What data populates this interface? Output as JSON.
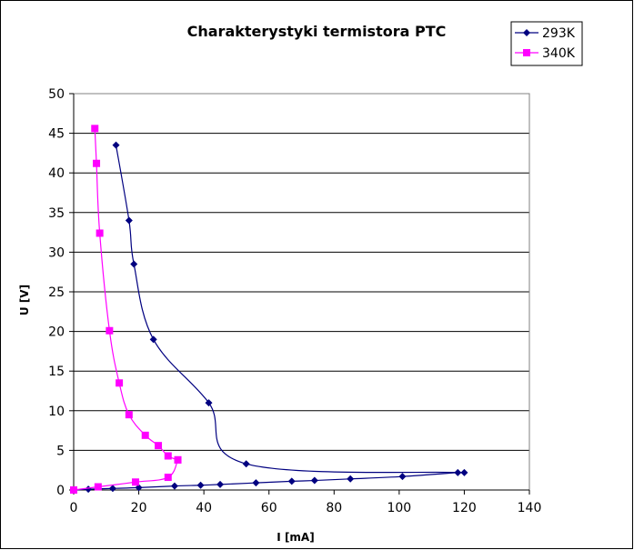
{
  "chart_data": {
    "type": "scatter",
    "title": "Charakterystyki termistora PTC",
    "xlabel": "I [mA]",
    "ylabel": "U [V]",
    "xlim": [
      0,
      140
    ],
    "ylim": [
      0,
      50
    ],
    "xticks": [
      0,
      20,
      40,
      60,
      80,
      100,
      120,
      140
    ],
    "yticks": [
      0,
      5,
      10,
      15,
      20,
      25,
      30,
      35,
      40,
      45,
      50
    ],
    "grid": "horizontal",
    "legend_position": "top-right",
    "series": [
      {
        "name": "293K",
        "color": "#000080",
        "marker": "diamond",
        "rising": [
          [
            0,
            0
          ],
          [
            4.5,
            0.1
          ],
          [
            12,
            0.2
          ],
          [
            20,
            0.3
          ],
          [
            31,
            0.5
          ],
          [
            39,
            0.6
          ],
          [
            45,
            0.7
          ],
          [
            56,
            0.9
          ],
          [
            67,
            1.1
          ],
          [
            74,
            1.2
          ],
          [
            85,
            1.4
          ],
          [
            101,
            1.7
          ],
          [
            118,
            2.2
          ]
        ],
        "falling": [
          [
            120,
            2.2
          ],
          [
            53,
            3.3
          ],
          [
            41.5,
            11
          ],
          [
            24.5,
            19
          ],
          [
            18.5,
            28.5
          ],
          [
            17,
            34
          ],
          [
            13,
            43.5
          ]
        ]
      },
      {
        "name": "340K",
        "color": "#ff00ff",
        "marker": "square",
        "rising": [
          [
            0,
            0
          ],
          [
            7.5,
            0.4
          ],
          [
            19,
            1.0
          ],
          [
            29,
            1.6
          ],
          [
            32,
            3.8
          ]
        ],
        "falling": [
          [
            32,
            3.8
          ],
          [
            29,
            4.3
          ],
          [
            26,
            5.6
          ],
          [
            22,
            6.9
          ],
          [
            17,
            9.5
          ],
          [
            14,
            13.5
          ],
          [
            11,
            20.1
          ],
          [
            8,
            32.4
          ],
          [
            7,
            41.2
          ],
          [
            6.5,
            45.6
          ]
        ]
      }
    ]
  }
}
